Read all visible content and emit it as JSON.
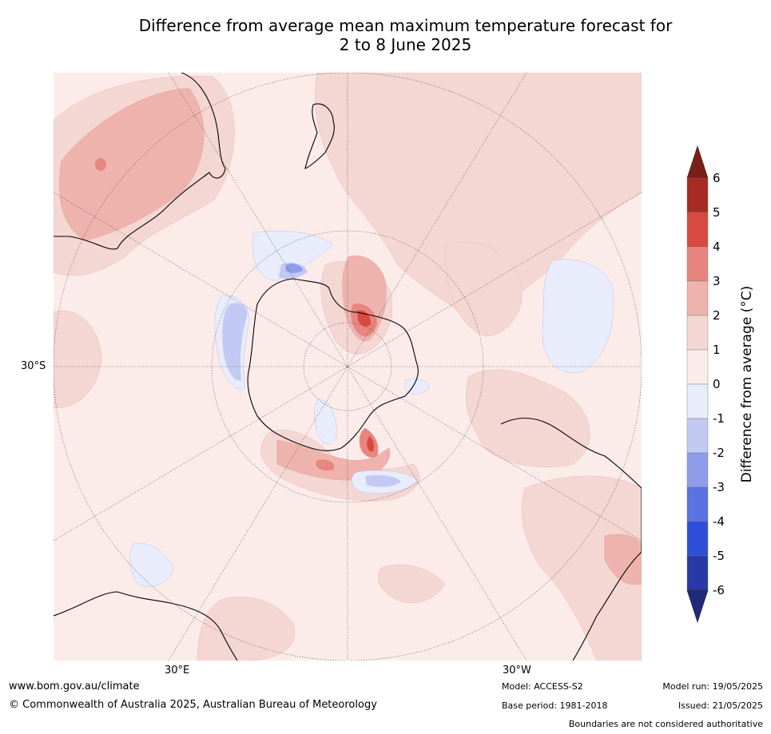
{
  "title": {
    "line1": "Difference from average mean maximum temperature forecast for",
    "line2": "2 to 8 June 2025"
  },
  "map_labels": {
    "lat_label": "30°S",
    "lon_east": "30°E",
    "lon_west": "30°W"
  },
  "colorbar": {
    "label": "Difference from average (°C)",
    "ticks": [
      "6",
      "5",
      "4",
      "3",
      "2",
      "1",
      "0",
      "-1",
      "-2",
      "-3",
      "-4",
      "-5",
      "-6"
    ],
    "colors": {
      "gt6": "#7b1e18",
      "5_6": "#a92a22",
      "4_5": "#d84a3f",
      "3_4": "#e8857e",
      "2_3": "#efb3ae",
      "1_2": "#f4d6d3",
      "0_1": "#fbecea",
      "m1_0": "#e8ecfb",
      "m2_m1": "#c2c9f2",
      "m3_m2": "#8e9cea",
      "m4_m3": "#5b72e1",
      "m5_m4": "#2f4fdb",
      "m6_m5": "#2838a6",
      "lt_m6": "#1f2a7a"
    }
  },
  "footer": {
    "website": "www.bom.gov.au/climate",
    "copyright": "© Commonwealth of Australia 2025, Australian Bureau of Meteorology",
    "model": "Model: ACCESS-S2",
    "base_period": "Base period: 1981-2018",
    "model_run": "Model run: 19/05/2025",
    "issued": "Issued: 21/05/2025",
    "disclaimer": "Boundaries are not considered authoritative"
  }
}
